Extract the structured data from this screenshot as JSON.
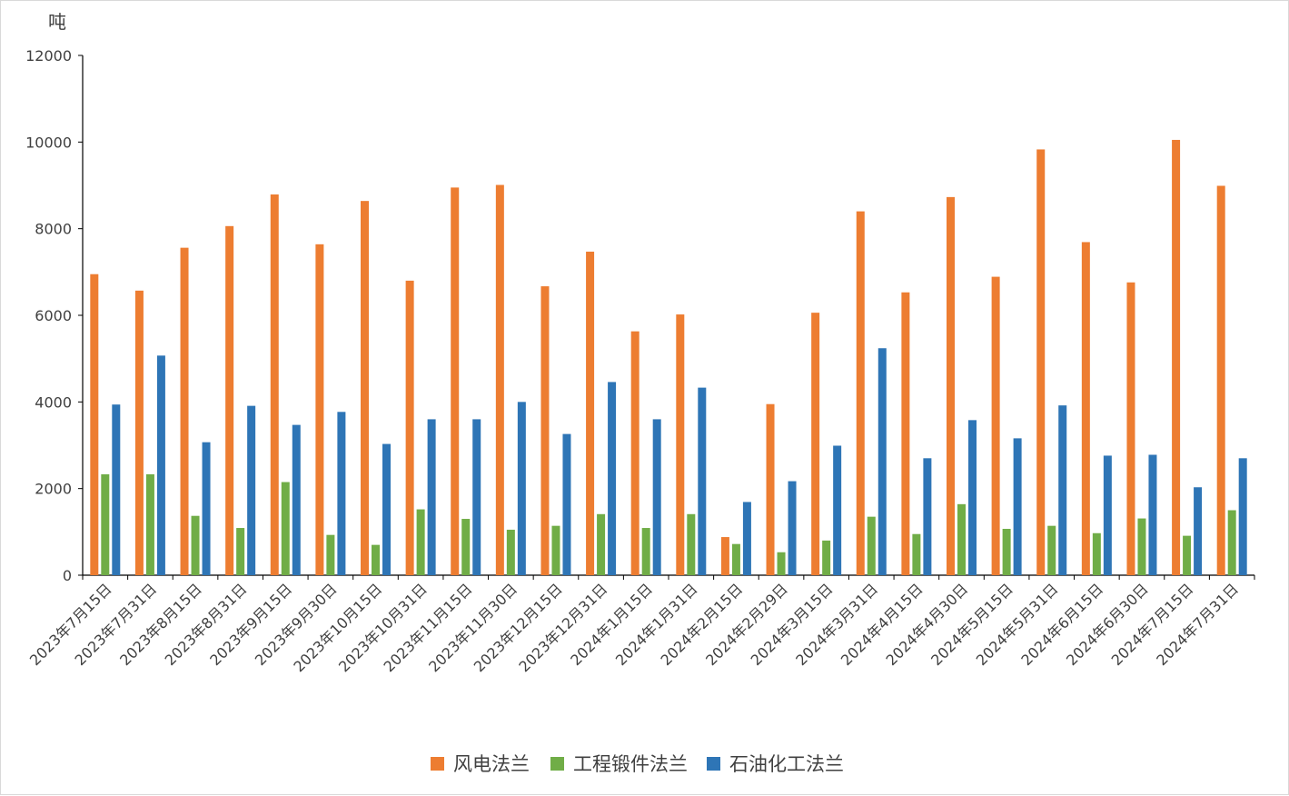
{
  "chart_data": {
    "type": "bar",
    "ylabel": "吨",
    "ylim": [
      0,
      12000
    ],
    "yticks": [
      0,
      2000,
      4000,
      6000,
      8000,
      10000,
      12000
    ],
    "legend_position": "bottom",
    "grid": false,
    "categories": [
      "2023年7月15日",
      "2023年7月31日",
      "2023年8月15日",
      "2023年8月31日",
      "2023年9月15日",
      "2023年9月30日",
      "2023年10月15日",
      "2023年10月31日",
      "2023年11月15日",
      "2023年11月30日",
      "2023年12月15日",
      "2023年12月31日",
      "2024年1月15日",
      "2024年1月31日",
      "2024年2月15日",
      "2024年2月29日",
      "2024年3月15日",
      "2024年3月31日",
      "2024年4月15日",
      "2024年4月30日",
      "2024年5月15日",
      "2024年5月31日",
      "2024年6月15日",
      "2024年6月30日",
      "2024年7月15日",
      "2024年7月31日"
    ],
    "series": [
      {
        "name": "风电法兰",
        "color": "#ED7D31",
        "values": [
          6950,
          6570,
          7560,
          8060,
          8790,
          7640,
          8640,
          6800,
          8950,
          9010,
          6670,
          7470,
          5630,
          6020,
          880,
          3950,
          6060,
          8400,
          6530,
          8730,
          6890,
          9830,
          7690,
          6760,
          10050,
          8990
        ]
      },
      {
        "name": "工程锻件法兰",
        "color": "#70AD47",
        "values": [
          2330,
          2330,
          1370,
          1090,
          2150,
          930,
          700,
          1520,
          1300,
          1050,
          1140,
          1410,
          1090,
          1410,
          720,
          530,
          800,
          1350,
          950,
          1640,
          1070,
          1140,
          970,
          1310,
          910,
          1500
        ]
      },
      {
        "name": "石油化工法兰",
        "color": "#2E75B6",
        "values": [
          3940,
          5070,
          3070,
          3910,
          3470,
          3770,
          3030,
          3600,
          3600,
          4000,
          3260,
          4460,
          3600,
          4330,
          1690,
          2170,
          2990,
          5240,
          2700,
          3580,
          3160,
          3920,
          2760,
          2780,
          2030,
          2700
        ]
      }
    ]
  }
}
